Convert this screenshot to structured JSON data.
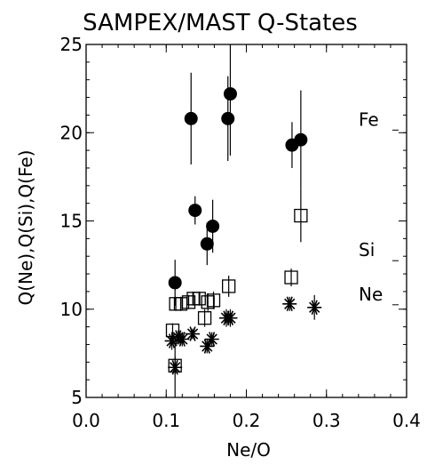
{
  "chart_data": {
    "type": "scatter",
    "title": "SAMPEX/MAST Q-States",
    "xlabel": "Ne/O",
    "ylabel": "Q(Ne),Q(Si),Q(Fe)",
    "xlim": [
      0.0,
      0.4
    ],
    "ylim": [
      5,
      25
    ],
    "x_ticks": [
      0.0,
      0.1,
      0.2,
      0.3,
      0.4
    ],
    "x_tick_labels": [
      "0.0",
      "0.1",
      "0.2",
      "0.3",
      "0.4"
    ],
    "y_ticks": [
      5,
      10,
      15,
      20,
      25
    ],
    "y_tick_labels": [
      "5",
      "10",
      "15",
      "20",
      "25"
    ],
    "grid": false,
    "series": [
      {
        "name": "Fe",
        "marker": "filled-circle",
        "label_y": 20.3,
        "points": [
          {
            "x": 0.111,
            "y": 11.5,
            "err": 1.3
          },
          {
            "x": 0.131,
            "y": 20.8,
            "err": 2.6
          },
          {
            "x": 0.136,
            "y": 15.6,
            "err": 0.8
          },
          {
            "x": 0.151,
            "y": 13.7,
            "err": 1.2
          },
          {
            "x": 0.158,
            "y": 14.7,
            "err": 1.5
          },
          {
            "x": 0.177,
            "y": 20.8,
            "err": 2.4
          },
          {
            "x": 0.18,
            "y": 22.2,
            "err": 3.5
          },
          {
            "x": 0.257,
            "y": 19.3,
            "err": 1.3
          },
          {
            "x": 0.268,
            "y": 19.6,
            "err": 2.8
          }
        ]
      },
      {
        "name": "Si",
        "marker": "open-square",
        "label_y": 12.9,
        "points": [
          {
            "x": 0.108,
            "y": 8.8,
            "err": 0.4
          },
          {
            "x": 0.111,
            "y": 6.8,
            "err": 0.5
          },
          {
            "x": 0.112,
            "y": 10.3,
            "err": 0.4
          },
          {
            "x": 0.118,
            "y": 10.3,
            "err": 0.4
          },
          {
            "x": 0.128,
            "y": 10.4,
            "err": 0.4
          },
          {
            "x": 0.134,
            "y": 10.6,
            "err": 0.4
          },
          {
            "x": 0.141,
            "y": 10.6,
            "err": 0.4
          },
          {
            "x": 0.148,
            "y": 9.5,
            "err": 0.5
          },
          {
            "x": 0.152,
            "y": 10.4,
            "err": 0.5
          },
          {
            "x": 0.159,
            "y": 10.5,
            "err": 0.5
          },
          {
            "x": 0.178,
            "y": 11.3,
            "err": 0.6
          },
          {
            "x": 0.256,
            "y": 11.8,
            "err": 0.5
          },
          {
            "x": 0.268,
            "y": 15.3,
            "err": 1.5
          }
        ]
      },
      {
        "name": "Ne",
        "marker": "asterisk",
        "label_y": 10.4,
        "points": [
          {
            "x": 0.107,
            "y": 8.2,
            "err": 0.5
          },
          {
            "x": 0.111,
            "y": 6.7,
            "err": 1.7
          },
          {
            "x": 0.115,
            "y": 8.4,
            "err": 0.4
          },
          {
            "x": 0.12,
            "y": 8.3,
            "err": 0.4
          },
          {
            "x": 0.133,
            "y": 8.6,
            "err": 0.3
          },
          {
            "x": 0.151,
            "y": 7.9,
            "err": 0.4
          },
          {
            "x": 0.157,
            "y": 8.3,
            "err": 0.4
          },
          {
            "x": 0.175,
            "y": 9.5,
            "err": 0.5
          },
          {
            "x": 0.18,
            "y": 9.5,
            "err": 0.5
          },
          {
            "x": 0.254,
            "y": 10.3,
            "err": 0.4
          },
          {
            "x": 0.285,
            "y": 10.1,
            "err": 0.7
          }
        ]
      }
    ]
  }
}
